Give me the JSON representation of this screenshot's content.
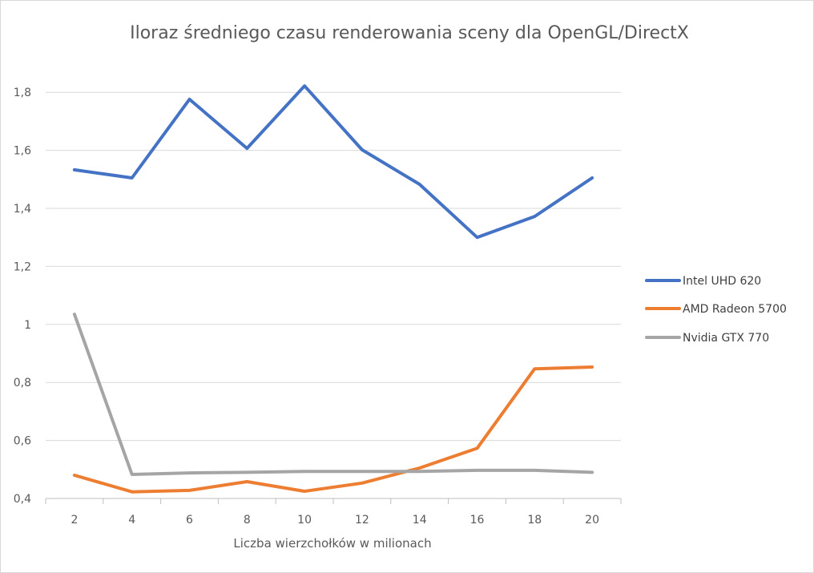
{
  "chart_data": {
    "type": "line",
    "title": "Iloraz średniego czasu renderowania sceny dla OpenGL/DirectX",
    "xlabel": "Liczba wierzchołków w milionach",
    "ylabel": "",
    "categories": [
      "2",
      "4",
      "6",
      "8",
      "10",
      "12",
      "14",
      "16",
      "18",
      "20"
    ],
    "y_ticks": [
      "0,4",
      "0,6",
      "0,8",
      "1",
      "1,2",
      "1,4",
      "1,6",
      "1,8"
    ],
    "ylim": [
      0.4,
      1.9
    ],
    "grid": true,
    "legend_position": "right",
    "series": [
      {
        "name": "Intel UHD 620",
        "color": "#4472c4",
        "values": [
          1.533,
          1.505,
          1.776,
          1.607,
          1.822,
          1.602,
          1.483,
          1.3,
          1.372,
          1.505
        ]
      },
      {
        "name": "AMD Radeon 5700",
        "color": "#ed7d31",
        "values": [
          0.48,
          0.423,
          0.428,
          0.458,
          0.425,
          0.453,
          0.505,
          0.573,
          0.847,
          0.853
        ]
      },
      {
        "name": "Nvidia GTX 770",
        "color": "#a5a5a5",
        "values": [
          1.035,
          0.483,
          0.488,
          0.49,
          0.493,
          0.493,
          0.493,
          0.497,
          0.497,
          0.49
        ]
      }
    ]
  }
}
